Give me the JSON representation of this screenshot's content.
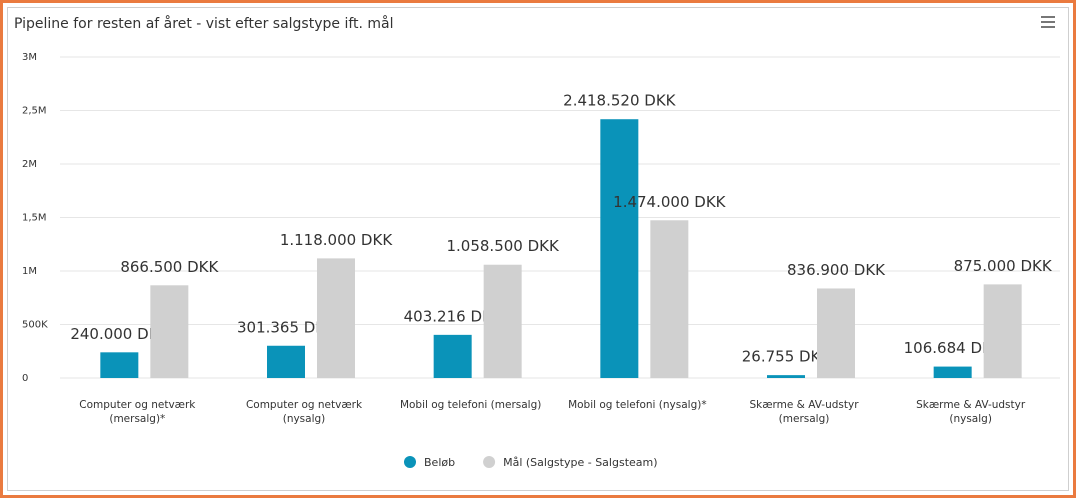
{
  "chart_data": {
    "type": "bar",
    "title": "Pipeline for resten af året - vist efter salgstype ift. mål",
    "categories": [
      "Computer og netværk (mersalg)*",
      "Computer og netværk (nysalg)",
      "Mobil og telefoni (mersalg)",
      "Mobil og telefoni (nysalg)*",
      "Skærme & AV-udstyr (mersalg)",
      "Skærme & AV-udstyr (nysalg)"
    ],
    "series": [
      {
        "name": "Beløb",
        "color": "#0a93b9",
        "values": [
          240000,
          301365,
          403216,
          2418520,
          26755,
          106684
        ],
        "value_labels": [
          "240.000 DKK",
          "301.365 DKK",
          "403.216 DKK",
          "2.418.520 DKK",
          "26.755 DKK",
          "106.684 DKK"
        ]
      },
      {
        "name": "Mål (Salgstype - Salgsteam)",
        "color": "#d0d0d0",
        "values": [
          866500,
          1118000,
          1058500,
          1474000,
          836900,
          875000
        ],
        "value_labels": [
          "866.500 DKK",
          "1.118.000 DKK",
          "1.058.500 DKK",
          "1.474.000 DKK",
          "836.900 DKK",
          "875.000 DKK"
        ]
      }
    ],
    "ylim": [
      0,
      3000000
    ],
    "yticks": [
      0,
      {
        "value": 500000,
        "label": "500K"
      },
      {
        "value": 1000000,
        "label": "1M"
      },
      {
        "value": 1500000,
        "label": "1,5M"
      },
      {
        "value": 2000000,
        "label": "2M"
      },
      {
        "value": 2500000,
        "label": "2,5M"
      },
      {
        "value": 3000000,
        "label": "3M"
      }
    ],
    "grid": true,
    "legend": "bottom"
  }
}
